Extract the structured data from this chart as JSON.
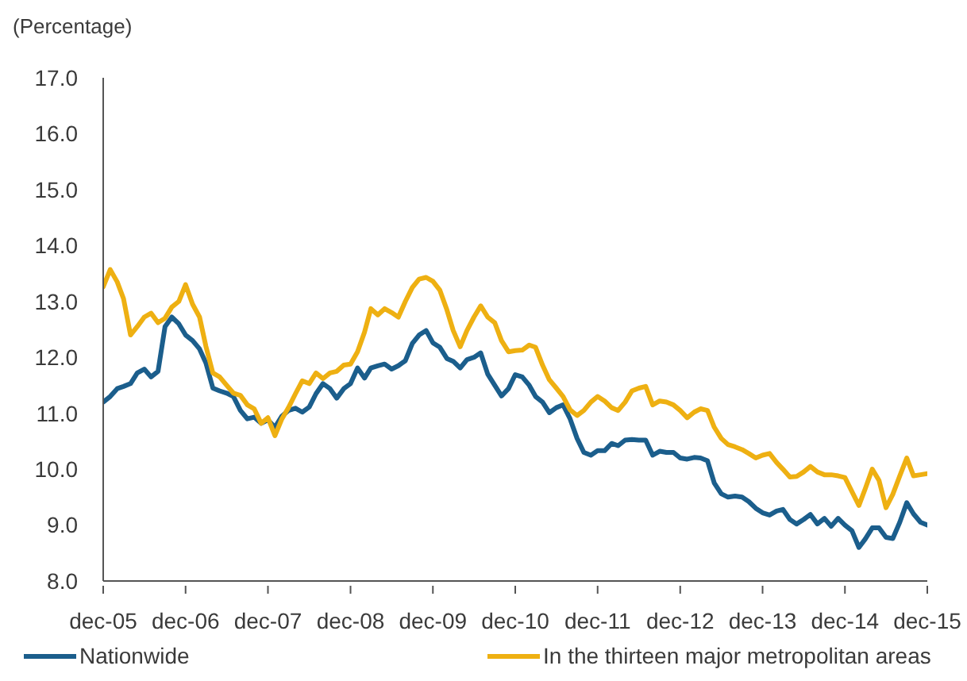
{
  "chart_data": {
    "type": "line",
    "ylabel": "(Percentage)",
    "x": [
      "2005-12",
      "2006-01",
      "2006-02",
      "2006-03",
      "2006-04",
      "2006-05",
      "2006-06",
      "2006-07",
      "2006-08",
      "2006-09",
      "2006-10",
      "2006-11",
      "2006-12",
      "2007-01",
      "2007-02",
      "2007-03",
      "2007-04",
      "2007-05",
      "2007-06",
      "2007-07",
      "2007-08",
      "2007-09",
      "2007-10",
      "2007-11",
      "2007-12",
      "2008-01",
      "2008-02",
      "2008-03",
      "2008-04",
      "2008-05",
      "2008-06",
      "2008-07",
      "2008-08",
      "2008-09",
      "2008-10",
      "2008-11",
      "2008-12",
      "2009-01",
      "2009-02",
      "2009-03",
      "2009-04",
      "2009-05",
      "2009-06",
      "2009-07",
      "2009-08",
      "2009-09",
      "2009-10",
      "2009-11",
      "2009-12",
      "2010-01",
      "2010-02",
      "2010-03",
      "2010-04",
      "2010-05",
      "2010-06",
      "2010-07",
      "2010-08",
      "2010-09",
      "2010-10",
      "2010-11",
      "2010-12",
      "2011-01",
      "2011-02",
      "2011-03",
      "2011-04",
      "2011-05",
      "2011-06",
      "2011-07",
      "2011-08",
      "2011-09",
      "2011-10",
      "2011-11",
      "2011-12",
      "2012-01",
      "2012-02",
      "2012-03",
      "2012-04",
      "2012-05",
      "2012-06",
      "2012-07",
      "2012-08",
      "2012-09",
      "2012-10",
      "2012-11",
      "2012-12",
      "2013-01",
      "2013-02",
      "2013-03",
      "2013-04",
      "2013-05",
      "2013-06",
      "2013-07",
      "2013-08",
      "2013-09",
      "2013-10",
      "2013-11",
      "2013-12",
      "2014-01",
      "2014-02",
      "2014-03",
      "2014-04",
      "2014-05",
      "2014-06",
      "2014-07",
      "2014-08",
      "2014-09",
      "2014-10",
      "2014-11",
      "2014-12",
      "2015-01",
      "2015-02",
      "2015-03",
      "2015-04",
      "2015-05",
      "2015-06",
      "2015-07",
      "2015-08",
      "2015-09",
      "2015-10",
      "2015-11",
      "2015-12"
    ],
    "series": [
      {
        "name": "Nationwide",
        "color": "#1b5e8c",
        "values": [
          11.2,
          11.3,
          11.44,
          11.48,
          11.53,
          11.72,
          11.79,
          11.65,
          11.75,
          12.55,
          12.72,
          12.6,
          12.4,
          12.3,
          12.15,
          11.9,
          11.45,
          11.4,
          11.36,
          11.3,
          11.05,
          10.9,
          10.93,
          10.82,
          10.88,
          10.75,
          10.95,
          11.05,
          11.09,
          11.02,
          11.11,
          11.35,
          11.53,
          11.44,
          11.27,
          11.44,
          11.53,
          11.81,
          11.63,
          11.81,
          11.85,
          11.88,
          11.79,
          11.85,
          11.94,
          12.25,
          12.4,
          12.48,
          12.26,
          12.18,
          11.98,
          11.93,
          11.81,
          11.96,
          12.0,
          12.08,
          11.7,
          11.5,
          11.31,
          11.44,
          11.69,
          11.65,
          11.5,
          11.3,
          11.2,
          11.01,
          11.1,
          11.15,
          10.9,
          10.55,
          10.3,
          10.25,
          10.33,
          10.33,
          10.46,
          10.42,
          10.52,
          10.53,
          10.52,
          10.52,
          10.25,
          10.32,
          10.3,
          10.3,
          10.2,
          10.18,
          10.21,
          10.2,
          10.15,
          9.75,
          9.56,
          9.5,
          9.52,
          9.5,
          9.42,
          9.3,
          9.22,
          9.18,
          9.25,
          9.28,
          9.1,
          9.02,
          9.1,
          9.19,
          9.02,
          9.12,
          8.98,
          9.12,
          9.0,
          8.9,
          8.6,
          8.75,
          8.95,
          8.95,
          8.78,
          8.76,
          9.05,
          9.4,
          9.2,
          9.05,
          9.0
        ]
      },
      {
        "name": "In the thirteen major metropolitan areas",
        "color": "#eeb012",
        "values": [
          13.26,
          13.57,
          13.35,
          13.05,
          12.4,
          12.55,
          12.72,
          12.79,
          12.62,
          12.7,
          12.9,
          13.0,
          13.3,
          12.95,
          12.72,
          12.2,
          11.72,
          11.65,
          11.5,
          11.36,
          11.32,
          11.15,
          11.08,
          10.82,
          10.92,
          10.6,
          10.9,
          11.1,
          11.35,
          11.58,
          11.53,
          11.72,
          11.62,
          11.72,
          11.75,
          11.86,
          11.88,
          12.1,
          12.45,
          12.87,
          12.76,
          12.87,
          12.8,
          12.72,
          13.0,
          13.25,
          13.4,
          13.43,
          13.36,
          13.2,
          12.85,
          12.48,
          12.19,
          12.48,
          12.72,
          12.92,
          12.72,
          12.62,
          12.3,
          12.1,
          12.12,
          12.13,
          12.22,
          12.18,
          11.86,
          11.6,
          11.45,
          11.3,
          11.06,
          10.96,
          11.05,
          11.2,
          11.3,
          11.22,
          11.1,
          11.05,
          11.2,
          11.4,
          11.45,
          11.48,
          11.15,
          11.22,
          11.2,
          11.15,
          11.05,
          10.92,
          11.02,
          11.08,
          11.05,
          10.75,
          10.55,
          10.44,
          10.4,
          10.35,
          10.28,
          10.2,
          10.25,
          10.28,
          10.12,
          10.0,
          9.86,
          9.87,
          9.95,
          10.05,
          9.95,
          9.9,
          9.9,
          9.88,
          9.85,
          9.6,
          9.35,
          9.65,
          10.0,
          9.8,
          9.31,
          9.55,
          9.88,
          10.2,
          9.88,
          9.9,
          9.92
        ]
      }
    ],
    "xlim": [
      "2005-12",
      "2015-12"
    ],
    "xticks": [
      {
        "value": "2005-12",
        "label": "dec-05"
      },
      {
        "value": "2006-12",
        "label": "dec-06"
      },
      {
        "value": "2007-12",
        "label": "dec-07"
      },
      {
        "value": "2008-12",
        "label": "dec-08"
      },
      {
        "value": "2009-12",
        "label": "dec-09"
      },
      {
        "value": "2010-12",
        "label": "dec-10"
      },
      {
        "value": "2011-12",
        "label": "dec-11"
      },
      {
        "value": "2012-12",
        "label": "dec-12"
      },
      {
        "value": "2013-12",
        "label": "dec-13"
      },
      {
        "value": "2014-12",
        "label": "dec-14"
      },
      {
        "value": "2015-12",
        "label": "dec-15"
      }
    ],
    "ylim": [
      8,
      17
    ],
    "yticks": [
      {
        "value": 8,
        "label": "8.0"
      },
      {
        "value": 9,
        "label": "9.0"
      },
      {
        "value": 10,
        "label": "10.0"
      },
      {
        "value": 11,
        "label": "11.0"
      },
      {
        "value": 12,
        "label": "12.0"
      },
      {
        "value": 13,
        "label": "13.0"
      },
      {
        "value": 14,
        "label": "14.0"
      },
      {
        "value": 15,
        "label": "15.0"
      },
      {
        "value": 16,
        "label": "16.0"
      },
      {
        "value": 17,
        "label": "17.0"
      }
    ],
    "legend": "bottom"
  }
}
